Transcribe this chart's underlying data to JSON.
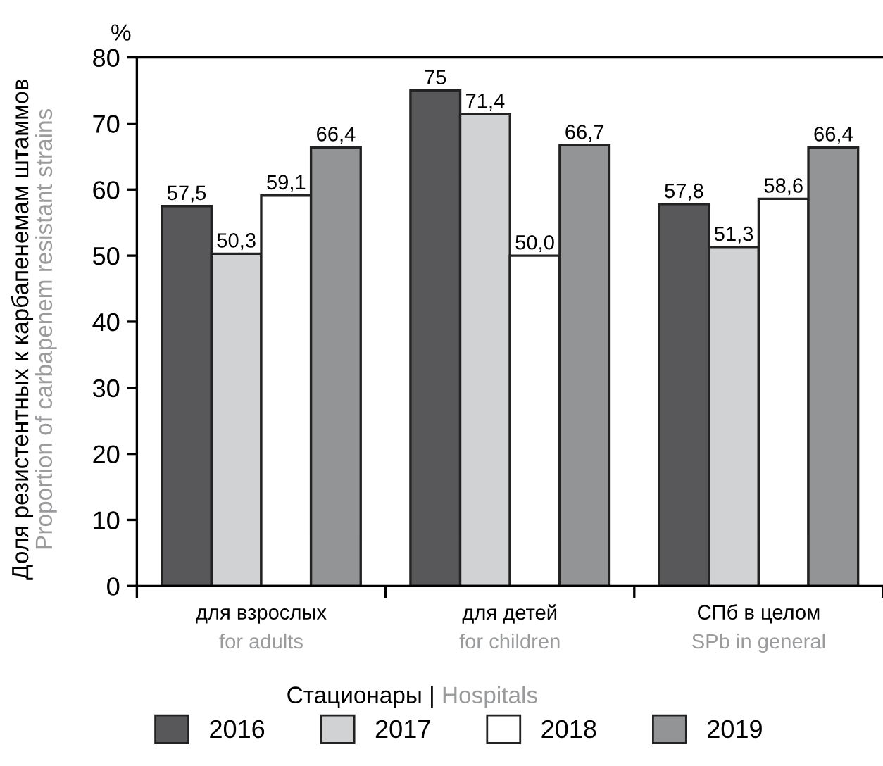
{
  "chart_data": {
    "type": "bar",
    "categories": [
      "для взрослых\nfor adults",
      "для детей\nfor children",
      "СПб в целом\nSPb in general"
    ],
    "series": [
      {
        "name": "2016",
        "color": "#58585a",
        "values": [
          57.5,
          75,
          57.8
        ],
        "value_labels": [
          "57,5",
          "75",
          "57,8"
        ]
      },
      {
        "name": "2017",
        "color": "#d1d2d4",
        "values": [
          50.3,
          71.4,
          51.3
        ],
        "value_labels": [
          "50,3",
          "71,4",
          "51,3"
        ]
      },
      {
        "name": "2018",
        "color": "#ffffff",
        "values": [
          59.1,
          50.0,
          58.6
        ],
        "value_labels": [
          "59,1",
          "50,0",
          "58,6"
        ]
      },
      {
        "name": "2019",
        "color": "#939496",
        "values": [
          66.4,
          66.7,
          66.4
        ],
        "value_labels": [
          "66,4",
          "66,7",
          "66,4"
        ]
      }
    ],
    "xlabel": "Стационары | Hospitals",
    "ylabel": "Доля резистентных к карбапенемам штаммов\nProportion of carbapenem resistant strains",
    "annotations": [
      "%"
    ],
    "ylim": [
      0,
      80
    ],
    "yticks": [
      0,
      10,
      20,
      30,
      40,
      50,
      60,
      70,
      80
    ],
    "grid": false,
    "legend": "bottom"
  }
}
